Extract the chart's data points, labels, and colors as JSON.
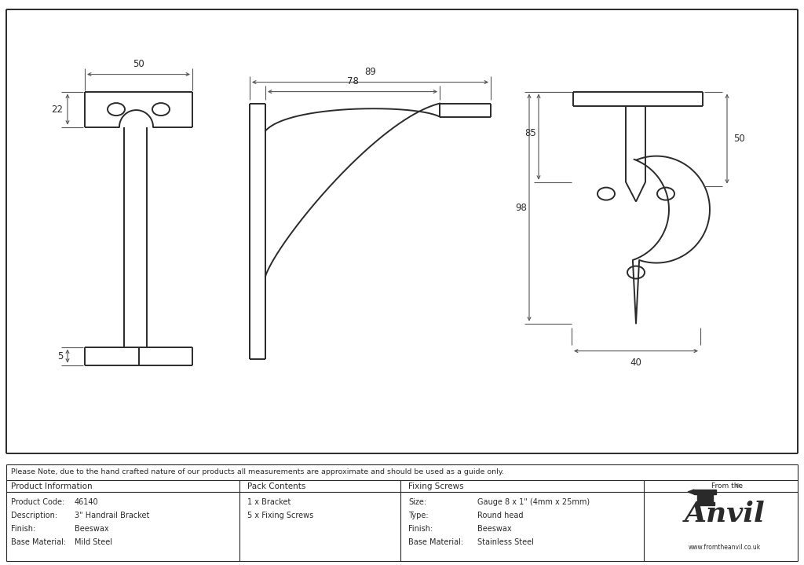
{
  "bg_color": "#ffffff",
  "line_color": "#2a2a2a",
  "dim_color": "#555555",
  "note_text": "Please Note, due to the hand crafted nature of our products all measurements are approximate and should be used as a guide only.",
  "product_code": "46140",
  "description": "3\" Handrail Bracket",
  "finish": "Beeswax",
  "base_material": "Mild Steel",
  "pack_contents": [
    "1 x Bracket",
    "5 x Fixing Screws"
  ],
  "screw_size": "Gauge 8 x 1\" (4mm x 25mm)",
  "screw_type": "Round head",
  "screw_finish": "Beeswax",
  "screw_base": "Stainless Steel",
  "col1_keys": [
    "Product Code:",
    "Description:",
    "Finish:",
    "Base Material:"
  ],
  "col1_vals": [
    "46140",
    "3\" Handrail Bracket",
    "Beeswax",
    "Mild Steel"
  ],
  "col3_keys": [
    "Size:",
    "Type:",
    "Finish:",
    "Base Material:"
  ],
  "col3_vals": [
    "Gauge 8 x 1\" (4mm x 25mm)",
    "Round head",
    "Beeswax",
    "Stainless Steel"
  ]
}
